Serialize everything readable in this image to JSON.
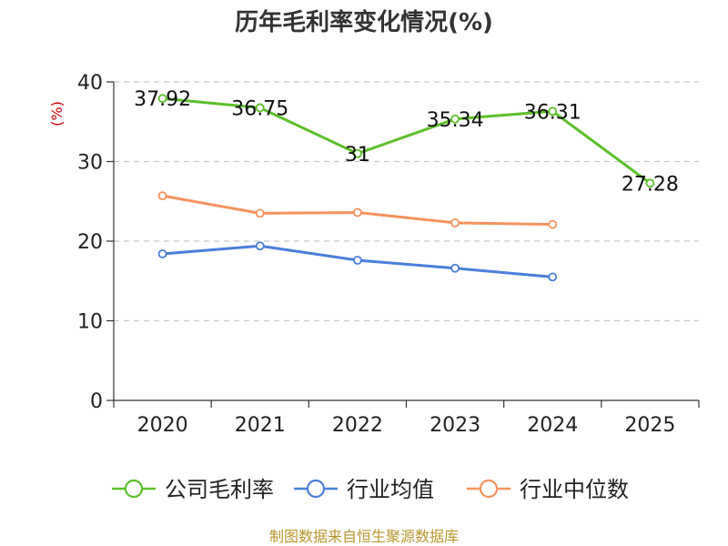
{
  "chart_data": {
    "type": "line",
    "title": "历年毛利率变化情况(%)",
    "ylabel": "(%)",
    "xlabel": "",
    "categories": [
      "2020",
      "2021",
      "2022",
      "2023",
      "2024",
      "2025"
    ],
    "ylim": [
      0,
      40
    ],
    "yticks": [
      0,
      10,
      20,
      30,
      40
    ],
    "grid": true,
    "legend_position": "bottom",
    "series": [
      {
        "name": "公司毛利率",
        "color": "#5cbf2a",
        "values": [
          37.92,
          36.75,
          31,
          35.34,
          36.31,
          27.28
        ],
        "labels": [
          "37.92",
          "36.75",
          "31",
          "35.34",
          "36.31",
          "27.28"
        ]
      },
      {
        "name": "行业均值",
        "color": "#4a7fdb",
        "values": [
          18.4,
          19.4,
          17.6,
          16.6,
          15.5,
          null
        ]
      },
      {
        "name": "行业中位数",
        "color": "#f5925e",
        "values": [
          25.7,
          23.5,
          23.6,
          22.3,
          22.1,
          null
        ]
      }
    ],
    "source": "制图数据来自恒生聚源数据库",
    "source_color": "#b8962e",
    "ylabel_color": "#cc0000"
  }
}
